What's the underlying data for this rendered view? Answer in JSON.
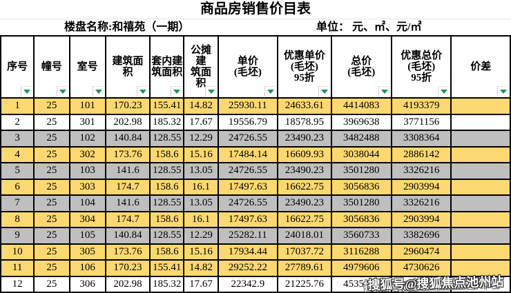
{
  "title": "商品房销售价目表",
  "subtitle": {
    "project_label": "楼盘名称:和禧苑（一期）",
    "unit_label": "单位： 元、㎡、元/㎡"
  },
  "colors": {
    "row_yellow": "#fbd870",
    "row_gray": "#bfbfbf",
    "row_white": "#ffffff",
    "filter_green": "#17934f",
    "grid_border": "#000000"
  },
  "table": {
    "columns": [
      {
        "label": "序号"
      },
      {
        "label": "幢号"
      },
      {
        "label": "室号"
      },
      {
        "label": "建筑面\n积"
      },
      {
        "label": "套内建\n筑面积"
      },
      {
        "label": "公摊\n建\n筑面\n积"
      },
      {
        "label": "单价\n(毛坯)"
      },
      {
        "label": "优惠单价\n(毛坯)\n95折"
      },
      {
        "label": "总价\n(毛坯)"
      },
      {
        "label": "优惠总价\n(毛坯)\n95折"
      },
      {
        "label": "价差"
      }
    ],
    "rows": [
      {
        "bg": "yellow",
        "values": [
          "1",
          "25",
          "101",
          "170.23",
          "155.41",
          "14.82",
          "25930.11",
          "24633.61",
          "4414083",
          "4193379",
          ""
        ]
      },
      {
        "bg": "white",
        "values": [
          "2",
          "25",
          "301",
          "202.98",
          "185.32",
          "17.67",
          "19556.79",
          "18578.95",
          "3969638",
          "3771156",
          ""
        ]
      },
      {
        "bg": "gray",
        "values": [
          "3",
          "25",
          "102",
          "140.84",
          "128.55",
          "12.29",
          "24726.55",
          "23490.23",
          "3482488",
          "3308364",
          ""
        ]
      },
      {
        "bg": "yellow",
        "values": [
          "4",
          "25",
          "302",
          "173.76",
          "158.6",
          "15.16",
          "17484.14",
          "16609.93",
          "3038044",
          "2886142",
          ""
        ]
      },
      {
        "bg": "gray",
        "values": [
          "5",
          "25",
          "103",
          "141.6",
          "128.55",
          "13.05",
          "24726.55",
          "23490.23",
          "3501280",
          "3326216",
          ""
        ]
      },
      {
        "bg": "yellow",
        "values": [
          "6",
          "25",
          "303",
          "174.7",
          "158.6",
          "16.1",
          "17497.63",
          "16622.75",
          "3056836",
          "2903994",
          ""
        ]
      },
      {
        "bg": "gray",
        "values": [
          "7",
          "25",
          "104",
          "141.6",
          "128.55",
          "13.05",
          "24726.55",
          "23490.23",
          "3501280",
          "3326216",
          ""
        ]
      },
      {
        "bg": "yellow",
        "values": [
          "8",
          "25",
          "304",
          "174.7",
          "158.6",
          "16.1",
          "17497.63",
          "16622.75",
          "3056836",
          "2903994",
          ""
        ]
      },
      {
        "bg": "gray",
        "values": [
          "9",
          "25",
          "105",
          "140.84",
          "128.55",
          "12.29",
          "25282.11",
          "24018.01",
          "3560733",
          "3382696",
          ""
        ]
      },
      {
        "bg": "yellow",
        "values": [
          "10",
          "25",
          "305",
          "173.76",
          "158.6",
          "15.16",
          "17934.44",
          "17037.72",
          "3116288",
          "2960474",
          ""
        ]
      },
      {
        "bg": "yellow",
        "values": [
          "11",
          "25",
          "106",
          "170.23",
          "155.41",
          "14.82",
          "29252.22",
          "27789.61",
          "4979606",
          "4730626",
          ""
        ]
      },
      {
        "bg": "white",
        "values": [
          "12",
          "25",
          "306",
          "202.98",
          "185.32",
          "17.67",
          "22342.9",
          "21225.76",
          "4535162",
          "",
          ""
        ]
      }
    ]
  },
  "watermark": {
    "text": "搜狐号@搜狐焦点池州站"
  }
}
